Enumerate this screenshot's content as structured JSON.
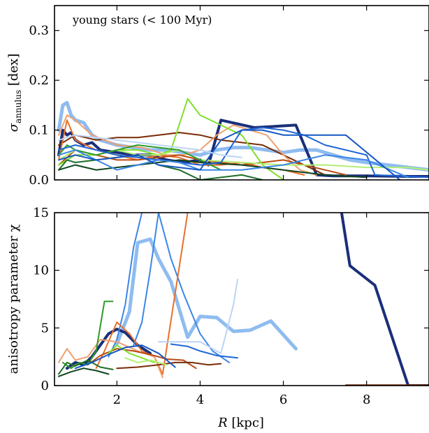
{
  "chart_data": [
    {
      "type": "line",
      "panel": "top",
      "ylabel": "σ",
      "ylabel_subscript": "annulus",
      "ylabel_unit": " [dex]",
      "annotation": "young stars (< 100 Myr)",
      "xlim": [
        0.5,
        9.5
      ],
      "ylim": [
        0,
        0.35
      ],
      "yticks": [
        0.0,
        0.1,
        0.2,
        0.3
      ],
      "ytick_labels": [
        "0.0",
        "0.1",
        "0.2",
        "0.3"
      ],
      "xticks": [
        2,
        4,
        6,
        8
      ],
      "series": [
        {
          "color": "#8fbcf0",
          "width": 5,
          "x": [
            0.6,
            0.7,
            0.8,
            0.9,
            1.0,
            1.2,
            1.4,
            1.6,
            2.0,
            2.4,
            2.8,
            3.2,
            3.6,
            4.0,
            4.4,
            4.8,
            5.2,
            5.6,
            6.0,
            6.4,
            6.8,
            7.2,
            7.6,
            8.0,
            9.0,
            9.5
          ],
          "y": [
            0.1,
            0.15,
            0.155,
            0.13,
            0.12,
            0.115,
            0.09,
            0.08,
            0.07,
            0.065,
            0.06,
            0.06,
            0.055,
            0.05,
            0.06,
            0.065,
            0.065,
            0.06,
            0.055,
            0.06,
            0.06,
            0.05,
            0.04,
            0.035,
            0.025,
            0.02
          ]
        },
        {
          "color": "#1a2f7a",
          "width": 4,
          "x": [
            0.6,
            0.7,
            0.8,
            0.9,
            1.0,
            1.2,
            1.4,
            1.6,
            2.0,
            2.4,
            2.8,
            3.2,
            3.6,
            4.0,
            4.2,
            4.5,
            5.3,
            6.3,
            6.8,
            7.2,
            8.0,
            9.0,
            9.5
          ],
          "y": [
            0.05,
            0.1,
            0.09,
            0.095,
            0.08,
            0.07,
            0.075,
            0.06,
            0.055,
            0.05,
            0.05,
            0.04,
            0.035,
            0.04,
            0.03,
            0.12,
            0.105,
            0.11,
            0.01,
            0.008,
            0.008,
            0.007,
            0.007
          ]
        },
        {
          "color": "#7a2c06",
          "width": 2,
          "x": [
            0.6,
            1.0,
            1.5,
            2.0,
            2.5,
            3.0,
            3.5,
            4.0,
            4.5,
            5.0,
            5.5,
            6.0,
            6.5,
            7.0
          ],
          "y": [
            0.07,
            0.09,
            0.08,
            0.085,
            0.085,
            0.09,
            0.095,
            0.09,
            0.08,
            0.075,
            0.07,
            0.05,
            0.03,
            0.01
          ]
        },
        {
          "color": "#f0a070",
          "width": 2,
          "x": [
            0.6,
            0.8,
            1.0,
            1.4,
            2.0,
            2.6,
            3.2,
            3.6,
            4.0,
            4.4,
            4.8,
            5.2,
            5.6,
            6.0,
            6.4,
            6.8
          ],
          "y": [
            0.09,
            0.13,
            0.12,
            0.09,
            0.07,
            0.065,
            0.05,
            0.05,
            0.06,
            0.09,
            0.11,
            0.1,
            0.09,
            0.05,
            0.02,
            0.01
          ]
        },
        {
          "color": "#e8702a",
          "width": 2,
          "x": [
            0.6,
            0.8,
            1.0,
            1.5,
            2.0,
            2.5,
            3.0,
            3.5,
            4.0,
            4.5,
            5.0,
            5.5,
            6.0,
            6.5
          ],
          "y": [
            0.04,
            0.12,
            0.08,
            0.06,
            0.05,
            0.04,
            0.05,
            0.045,
            0.03,
            0.03,
            0.035,
            0.025,
            0.02,
            0.01
          ]
        },
        {
          "color": "#b84a12",
          "width": 2,
          "x": [
            0.6,
            1.0,
            1.5,
            2.0,
            2.5,
            3.0,
            3.5,
            4.0,
            4.5,
            5.0,
            5.5,
            6.0,
            6.5,
            7.0,
            7.5
          ],
          "y": [
            0.03,
            0.06,
            0.05,
            0.04,
            0.04,
            0.045,
            0.05,
            0.04,
            0.035,
            0.03,
            0.035,
            0.04,
            0.03,
            0.02,
            0.01
          ]
        },
        {
          "color": "#7ee02a",
          "width": 2,
          "x": [
            0.6,
            1.0,
            1.5,
            2.0,
            2.5,
            3.0,
            3.3,
            3.7,
            4.0,
            4.5,
            5.0,
            5.5,
            6.0
          ],
          "y": [
            0.03,
            0.05,
            0.05,
            0.06,
            0.06,
            0.05,
            0.06,
            0.163,
            0.13,
            0.11,
            0.09,
            0.03,
            0.0
          ]
        },
        {
          "color": "#b2ef74",
          "width": 2,
          "x": [
            0.6,
            1.0,
            1.5,
            2.0,
            2.5,
            3.0,
            3.5,
            4.0,
            5.0,
            6.0,
            7.0,
            8.0,
            9.0,
            9.5
          ],
          "y": [
            0.04,
            0.06,
            0.05,
            0.06,
            0.05,
            0.05,
            0.06,
            0.04,
            0.035,
            0.03,
            0.03,
            0.025,
            0.025,
            0.02
          ]
        },
        {
          "color": "#2f9a2b",
          "width": 2,
          "x": [
            0.6,
            0.8,
            1.0,
            1.5,
            2.0,
            2.5,
            3.0,
            3.5,
            4.0,
            4.5
          ],
          "y": [
            0.05,
            0.07,
            0.06,
            0.05,
            0.06,
            0.07,
            0.065,
            0.06,
            0.04,
            0.02
          ]
        },
        {
          "color": "#1f6f2a",
          "width": 2,
          "x": [
            0.6,
            0.8,
            1.0,
            1.5,
            2.0,
            2.5,
            3.0,
            3.5,
            4.0,
            4.5,
            5.0,
            5.5
          ],
          "y": [
            0.02,
            0.04,
            0.035,
            0.04,
            0.045,
            0.05,
            0.03,
            0.02,
            0.0,
            0.005,
            0.01,
            0.0
          ]
        },
        {
          "color": "#0f4520",
          "width": 2,
          "x": [
            0.6,
            1.0,
            1.5,
            2.0,
            2.5,
            3.0,
            3.5,
            4.0,
            5.0,
            6.0,
            7.0,
            8.0
          ],
          "y": [
            0.02,
            0.03,
            0.02,
            0.025,
            0.03,
            0.035,
            0.04,
            0.035,
            0.03,
            0.02,
            0.01,
            0.005
          ]
        },
        {
          "color": "#1f66d6",
          "width": 2,
          "x": [
            0.6,
            1.0,
            1.5,
            2.0,
            2.5,
            3.0,
            3.5,
            4.0,
            4.5,
            5.0,
            5.5,
            6.0,
            6.5,
            7.0,
            8.0,
            8.2,
            9.5
          ],
          "y": [
            0.06,
            0.07,
            0.06,
            0.05,
            0.045,
            0.04,
            0.035,
            0.03,
            0.035,
            0.1,
            0.105,
            0.1,
            0.09,
            0.07,
            0.05,
            0.01,
            0.005
          ]
        },
        {
          "color": "#3b86e6",
          "width": 2,
          "x": [
            0.6,
            1.0,
            1.5,
            2.0,
            2.5,
            3.0,
            3.5,
            4.0,
            4.5,
            5.0,
            5.5,
            6.0,
            6.5,
            7.0,
            8.0,
            9.0
          ],
          "y": [
            0.05,
            0.06,
            0.04,
            0.02,
            0.03,
            0.04,
            0.035,
            0.02,
            0.02,
            0.02,
            0.025,
            0.03,
            0.04,
            0.05,
            0.04,
            0.005
          ]
        },
        {
          "color": "#1556c4",
          "width": 2,
          "x": [
            0.6,
            1.0,
            1.5,
            2.0,
            2.5,
            3.0,
            4.0,
            4.5,
            5.0,
            5.5,
            6.0,
            6.5,
            7.0,
            7.5,
            8.8
          ],
          "y": [
            0.04,
            0.05,
            0.04,
            0.045,
            0.05,
            0.03,
            0.02,
            0.08,
            0.1,
            0.1,
            0.09,
            0.09,
            0.09,
            0.09,
            0.0
          ]
        },
        {
          "color": "#bcd4f6",
          "width": 2,
          "x": [
            0.6,
            1.0,
            1.5,
            2.0,
            2.5,
            3.0,
            3.5,
            4.0,
            4.5,
            5.0
          ],
          "y": [
            0.08,
            0.09,
            0.085,
            0.08,
            0.075,
            0.07,
            0.065,
            0.06,
            0.05,
            0.045
          ]
        }
      ]
    },
    {
      "type": "line",
      "panel": "bottom",
      "ylabel": "anisotropy parameter χ",
      "xlabel_var": "R",
      "xlabel_unit": " [kpc]",
      "xlim": [
        0.5,
        9.5
      ],
      "ylim": [
        0,
        15
      ],
      "yticks": [
        0,
        5,
        10,
        15
      ],
      "ytick_labels": [
        "0",
        "5",
        "10",
        "15"
      ],
      "xticks": [
        2,
        4,
        6,
        8
      ],
      "xtick_labels": [
        "2",
        "4",
        "6",
        "8"
      ],
      "series": [
        {
          "color": "#8fbcf0",
          "width": 5,
          "x": [
            2.0,
            2.3,
            2.5,
            2.8,
            3.0,
            3.3,
            3.7,
            4.0,
            4.4,
            4.8,
            5.2,
            5.7,
            6.3
          ],
          "y": [
            3.6,
            6.4,
            12.4,
            12.7,
            11.0,
            9.0,
            4.2,
            6.0,
            5.9,
            4.7,
            4.8,
            5.6,
            3.2
          ]
        },
        {
          "color": "#1a2f7a",
          "width": 4,
          "x": [
            0.8,
            1.0,
            1.2,
            1.4,
            1.6,
            1.8,
            2.0,
            2.2,
            2.5,
            2.8
          ],
          "y": [
            1.5,
            2.0,
            1.8,
            2.5,
            3.5,
            4.5,
            4.9,
            4.6,
            3.5,
            2.8
          ]
        },
        {
          "color": "#1a2f7a",
          "width": 4,
          "x": [
            7.4,
            7.6,
            8.2,
            9.0,
            9.5
          ],
          "y": [
            15.0,
            10.4,
            8.7,
            0.0,
            0.0
          ]
        },
        {
          "color": "#3b86e6",
          "width": 2,
          "x": [
            1.8,
            2.0,
            2.2,
            2.4,
            2.6
          ],
          "y": [
            2.5,
            4.0,
            7.0,
            12.0,
            15.0
          ]
        },
        {
          "color": "#3b86e6",
          "width": 2,
          "x": [
            2.4,
            2.6,
            2.8,
            3.0,
            3.3,
            3.6,
            4.0,
            4.3,
            4.7
          ],
          "y": [
            3.5,
            5.5,
            10.0,
            15.0,
            11.0,
            8.0,
            4.5,
            3.0,
            2.0
          ]
        },
        {
          "color": "#e8702a",
          "width": 2,
          "x": [
            1.5,
            1.7,
            2.0,
            2.3,
            2.6,
            2.9,
            3.1,
            3.4,
            3.7
          ],
          "y": [
            1.5,
            3.0,
            5.5,
            4.5,
            3.0,
            2.5,
            1.0,
            8.0,
            15.0
          ]
        },
        {
          "color": "#f0a070",
          "width": 2,
          "x": [
            0.6,
            0.8,
            1.0,
            1.3,
            1.6,
            2.0,
            2.5,
            2.9,
            3.1
          ],
          "y": [
            2.0,
            3.2,
            2.2,
            2.5,
            4.0,
            3.8,
            3.0,
            2.5,
            0.7
          ]
        },
        {
          "color": "#b84a12",
          "width": 2,
          "x": [
            1.3,
            1.6,
            2.0,
            2.4,
            2.8,
            3.2,
            3.6,
            3.9
          ],
          "y": [
            1.8,
            2.6,
            3.2,
            3.0,
            2.7,
            2.3,
            2.2,
            1.5
          ]
        },
        {
          "color": "#7a2c06",
          "width": 2,
          "x": [
            2.0,
            2.5,
            3.0,
            3.4,
            3.8,
            4.2,
            4.5
          ],
          "y": [
            1.5,
            1.6,
            1.8,
            2.0,
            2.0,
            1.8,
            1.9
          ]
        },
        {
          "color": "#2f9a2b",
          "width": 2,
          "x": [
            0.7,
            0.9,
            1.1,
            1.3,
            1.5,
            1.7,
            1.9
          ],
          "y": [
            2.0,
            1.5,
            2.0,
            1.8,
            3.0,
            7.3,
            7.3
          ]
        },
        {
          "color": "#7ee02a",
          "width": 2,
          "x": [
            1.8,
            2.0,
            2.3,
            2.6,
            2.9
          ],
          "y": [
            2.8,
            3.5,
            2.8,
            2.4,
            2.0
          ]
        },
        {
          "color": "#b2ef74",
          "width": 2,
          "x": [
            2.2,
            2.5,
            2.8,
            3.0,
            3.2
          ],
          "y": [
            2.4,
            2.0,
            2.2,
            2.0,
            1.8
          ]
        },
        {
          "color": "#1f6f2a",
          "width": 2,
          "x": [
            0.6,
            0.8,
            1.0,
            1.3,
            1.6,
            1.9
          ],
          "y": [
            1.0,
            2.0,
            1.7,
            2.2,
            1.6,
            1.4
          ]
        },
        {
          "color": "#0f4520",
          "width": 2,
          "x": [
            0.6,
            0.9,
            1.2,
            1.5,
            1.8
          ],
          "y": [
            0.8,
            1.2,
            1.5,
            1.3,
            1.0
          ]
        },
        {
          "color": "#1556c4",
          "width": 2,
          "x": [
            1.0,
            1.4,
            1.8,
            2.2,
            2.6,
            3.0,
            3.4
          ],
          "y": [
            1.5,
            2.0,
            2.7,
            3.3,
            3.5,
            2.8,
            1.6
          ]
        },
        {
          "color": "#bcd4f6",
          "width": 2,
          "x": [
            3.0,
            3.5,
            4.0,
            4.5,
            4.8,
            4.9
          ],
          "y": [
            3.8,
            3.8,
            3.8,
            2.8,
            7.0,
            9.2
          ]
        },
        {
          "color": "#1f66d6",
          "width": 2,
          "x": [
            3.3,
            3.7,
            4.0,
            4.4,
            4.9
          ],
          "y": [
            3.6,
            3.4,
            3.0,
            2.6,
            2.4
          ]
        },
        {
          "color": "#7a2c06",
          "width": 2,
          "x": [
            7.5,
            8.0,
            9.0,
            9.5
          ],
          "y": [
            0.05,
            0.05,
            0.05,
            0.05
          ]
        }
      ]
    }
  ]
}
